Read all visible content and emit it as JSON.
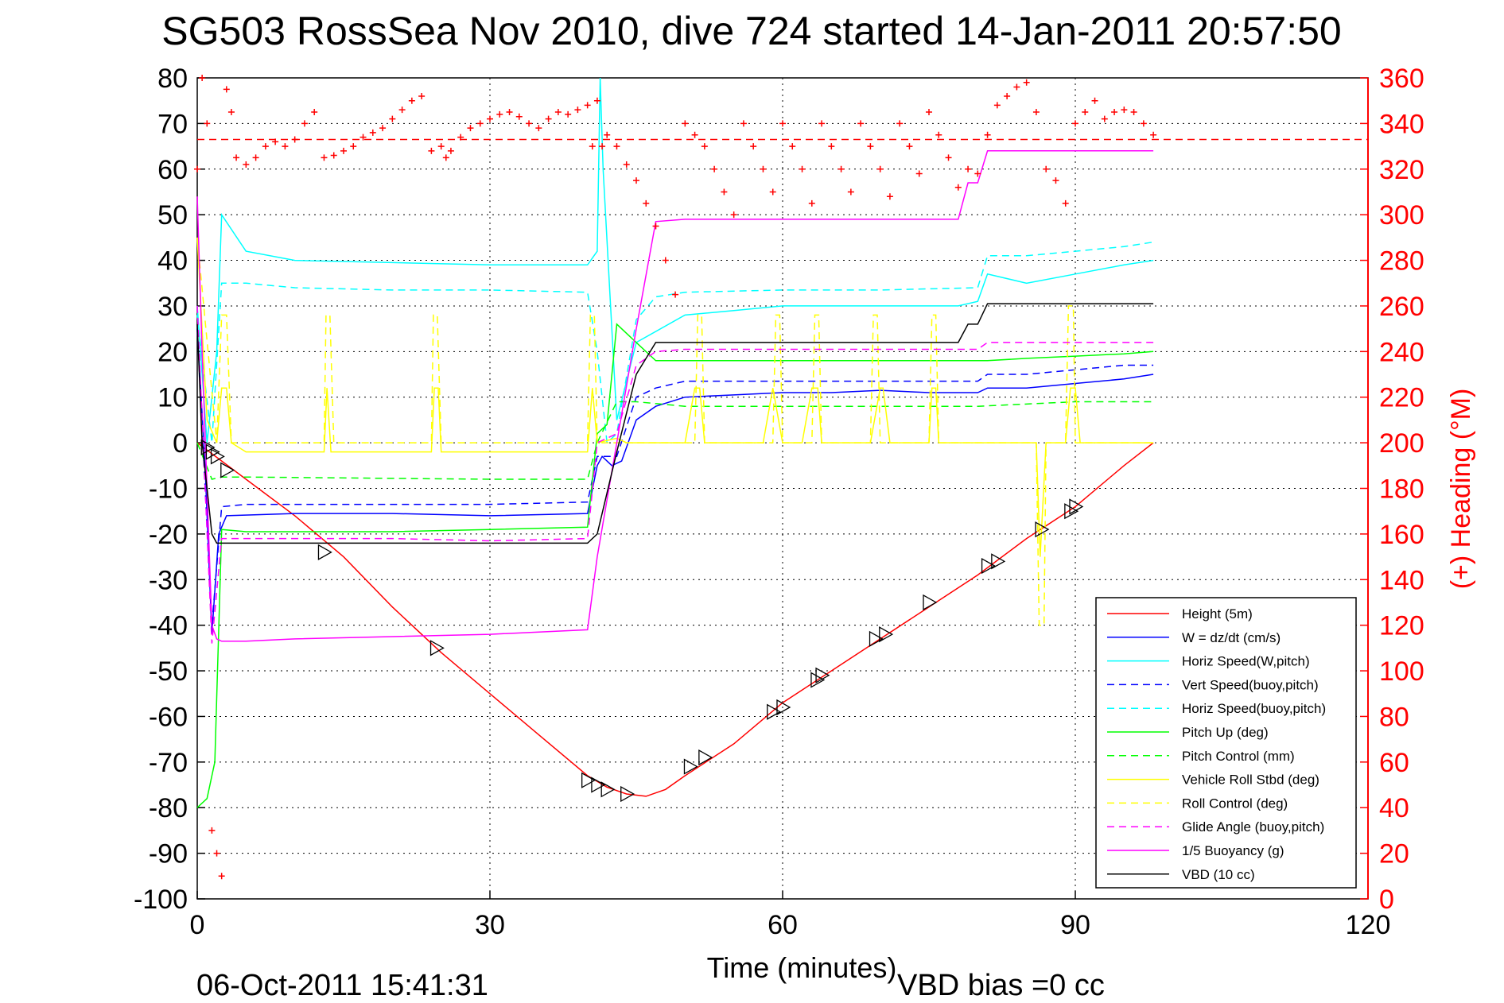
{
  "chart_data": {
    "type": "line",
    "title": "SG503 RossSea Nov 2010, dive 724 started 14-Jan-2011 20:57:50",
    "xlabel": "Time (minutes)",
    "ylabel": "",
    "ylabel_right": "(+) Heading (°M)",
    "xlim": [
      0,
      120
    ],
    "ylim": [
      -100,
      80
    ],
    "ylim_right": [
      0,
      360
    ],
    "x_ticks": [
      "0",
      "30",
      "60",
      "90",
      "120"
    ],
    "y_ticks": [
      "80",
      "70",
      "60",
      "50",
      "40",
      "30",
      "20",
      "10",
      "0",
      "-10",
      "-20",
      "-30",
      "-40",
      "-50",
      "-60",
      "-70",
      "-80",
      "-90",
      "-100"
    ],
    "y_ticks_right": [
      "360",
      "340",
      "320",
      "300",
      "280",
      "260",
      "240",
      "220",
      "200",
      "180",
      "160",
      "140",
      "120",
      "100",
      "80",
      "60",
      "40",
      "20",
      "0"
    ],
    "grid": true,
    "legend_position": "bottom-right",
    "footer_left": "06-Oct-2011 15:41:31",
    "footer_right": "VBD bias =0 cc",
    "colors": {
      "red": "#ff0000",
      "blue": "#0000ff",
      "cyan": "#00ffff",
      "green": "#00ff00",
      "yellow": "#ffff00",
      "magenta": "#ff00ff",
      "black": "#000000"
    },
    "series": [
      {
        "name": "Height (5m)",
        "color": "#ff0000",
        "dash": "solid",
        "x": [
          0,
          5,
          10,
          15,
          20,
          25,
          30,
          35,
          40,
          42,
          44,
          46,
          48,
          50,
          55,
          60,
          65,
          70,
          75,
          80,
          85,
          90,
          95,
          98
        ],
        "y": [
          0,
          -8,
          -16,
          -25,
          -36,
          -46,
          -55,
          -64,
          -73,
          -75.5,
          -77,
          -77.5,
          -76,
          -73,
          -66,
          -57,
          -50,
          -43,
          -36,
          -29,
          -21,
          -14,
          -5,
          0
        ]
      },
      {
        "name": "W = dz/dt (cm/s)",
        "color": "#0000ff",
        "dash": "solid",
        "x": [
          0,
          0.8,
          1.5,
          2.2,
          3,
          10,
          20,
          30,
          40,
          41,
          41.5,
          42.5,
          43.5,
          45,
          47,
          50,
          55,
          60,
          65,
          70,
          75,
          80,
          81,
          85,
          90,
          95,
          98
        ],
        "y": [
          25,
          -5,
          -42,
          -20,
          -16,
          -15.5,
          -15.5,
          -16,
          -15.5,
          -5,
          -3,
          -5,
          -4,
          5,
          8,
          10,
          10.5,
          11,
          11,
          11.5,
          11,
          11,
          12,
          12,
          13,
          14,
          15
        ]
      },
      {
        "name": "Horiz Speed(W,pitch)",
        "color": "#00ffff",
        "dash": "solid",
        "x": [
          0,
          1,
          2,
          2.5,
          5,
          10,
          20,
          30,
          40,
          41,
          41.3,
          41.6,
          43,
          45,
          50,
          55,
          60,
          70,
          78,
          80,
          81,
          85,
          90,
          95,
          98
        ],
        "y": [
          30,
          0,
          20,
          50,
          42,
          40,
          39.5,
          39,
          39,
          42,
          80,
          60,
          5,
          22,
          28,
          29,
          30,
          30,
          30,
          31,
          37,
          35,
          37,
          39,
          40
        ]
      },
      {
        "name": "Vert Speed(buoy,pitch)",
        "color": "#0000ff",
        "dash": "dashed",
        "x": [
          0,
          1.5,
          2.5,
          5,
          20,
          30,
          40,
          41,
          43,
          45,
          47,
          50,
          60,
          70,
          80,
          81,
          85,
          90,
          95,
          98
        ],
        "y": [
          25,
          -40,
          -14,
          -13.5,
          -13.5,
          -13.5,
          -13,
          -3,
          -3,
          10,
          12,
          13.5,
          13.5,
          13.5,
          13.5,
          15,
          15,
          16,
          17,
          17
        ]
      },
      {
        "name": "Horiz Speed(buoy,pitch)",
        "color": "#00ffff",
        "dash": "dashed",
        "x": [
          0,
          1.5,
          2.5,
          5,
          10,
          20,
          30,
          40,
          41,
          42,
          43,
          45,
          47,
          50,
          60,
          70,
          80,
          81,
          85,
          90,
          95,
          98
        ],
        "y": [
          28,
          0,
          35,
          35,
          34,
          33.5,
          33.5,
          33,
          20,
          0,
          2,
          27,
          32,
          33,
          33.5,
          33.5,
          34,
          41,
          41,
          42,
          43,
          44
        ]
      },
      {
        "name": "Pitch Up (deg)",
        "color": "#00ff00",
        "dash": "solid",
        "x": [
          0,
          1,
          1.8,
          2.5,
          5,
          20,
          30,
          40,
          41,
          42,
          43,
          45,
          47,
          50,
          60,
          70,
          80,
          81,
          85,
          90,
          95,
          98
        ],
        "y": [
          -80,
          -78,
          -70,
          -19,
          -19.5,
          -19.5,
          -19,
          -18.5,
          2,
          4,
          26,
          22,
          18,
          18,
          18,
          18,
          18,
          18,
          18.5,
          19,
          19.5,
          20
        ]
      },
      {
        "name": "Pitch Control (mm)",
        "color": "#00ff00",
        "dash": "dashed",
        "x": [
          0,
          1.5,
          2.5,
          5,
          20,
          30,
          40,
          41,
          43,
          45,
          50,
          60,
          70,
          80,
          90,
          98
        ],
        "y": [
          0,
          -8,
          -7.5,
          -7.5,
          -7.8,
          -8,
          -8,
          0,
          9,
          9,
          8,
          8,
          8,
          8,
          9,
          9
        ]
      },
      {
        "name": "Vehicle Roll Stbd (deg)",
        "color": "#ffff00",
        "dash": "solid",
        "x": [
          0,
          1,
          2,
          2.5,
          3,
          3.5,
          5,
          13,
          13.3,
          13.7,
          14,
          24,
          24.3,
          24.7,
          25,
          40,
          40.5,
          41,
          43,
          44,
          50,
          51,
          51.5,
          52,
          58,
          59,
          60,
          62,
          63,
          63.3,
          63.6,
          64,
          69,
          70,
          70.3,
          71,
          75,
          75.3,
          75.7,
          76,
          85,
          86,
          86.4,
          87,
          89,
          89.5,
          90,
          90.5,
          98
        ],
        "y": [
          45,
          5,
          0,
          12,
          12,
          0,
          -2,
          -2,
          12,
          -2,
          -2,
          -2,
          12,
          12,
          -2,
          -2,
          12,
          0,
          1,
          0,
          0,
          12,
          12,
          0,
          0,
          12,
          0,
          0,
          12,
          12,
          12,
          0,
          0,
          12,
          12,
          0,
          0,
          12,
          12,
          0,
          0,
          0,
          -25,
          0,
          0,
          12,
          12,
          0,
          0
        ]
      },
      {
        "name": "Roll Control (deg)",
        "color": "#ffff00",
        "dash": "dashed",
        "x": [
          0,
          2,
          2.5,
          3,
          3.5,
          5,
          13,
          13.2,
          13.6,
          14,
          24,
          24.2,
          24.6,
          25,
          40,
          40.3,
          40.7,
          41,
          44,
          51,
          51.3,
          51.7,
          52,
          59,
          59.3,
          59.7,
          60,
          63,
          63.3,
          63.7,
          64,
          69,
          69.3,
          69.7,
          70,
          75,
          75.3,
          75.7,
          76,
          85,
          86,
          86.3,
          86.8,
          87,
          89,
          89.3,
          89.8,
          90,
          98
        ],
        "y": [
          45,
          0,
          28,
          28,
          0,
          0,
          0,
          28,
          28,
          0,
          0,
          28,
          28,
          0,
          0,
          28,
          28,
          0,
          0,
          0,
          28,
          28,
          0,
          0,
          28,
          28,
          0,
          0,
          28,
          28,
          0,
          0,
          28,
          28,
          0,
          0,
          28,
          28,
          0,
          0,
          0,
          -40,
          -40,
          0,
          0,
          30,
          30,
          0,
          0
        ]
      },
      {
        "name": "Glide Angle (buoy,pitch)",
        "color": "#ff00ff",
        "dash": "dashed",
        "x": [
          0,
          1.5,
          2.5,
          5,
          20,
          30,
          40,
          41,
          43,
          45,
          47,
          50,
          60,
          70,
          80,
          81,
          85,
          90,
          95,
          98
        ],
        "y": [
          30,
          -44,
          -21,
          -21,
          -21,
          -21.5,
          -21,
          0,
          2,
          17,
          20,
          20.5,
          20.5,
          20.5,
          20.5,
          22,
          22,
          22,
          22,
          22
        ]
      },
      {
        "name": "1/5 Buoyancy (g)",
        "color": "#ff00ff",
        "dash": "solid",
        "x": [
          0,
          0.5,
          1,
          1.5,
          2,
          2.5,
          5,
          10,
          20,
          30,
          40,
          41,
          43,
          45,
          47,
          50,
          60,
          70,
          78,
          79,
          80,
          81,
          82,
          90,
          98
        ],
        "y": [
          54,
          20,
          -10,
          -40,
          -43,
          -43.5,
          -43.5,
          -43,
          -42.5,
          -42,
          -41,
          -25,
          0,
          25,
          48.5,
          49,
          49,
          49,
          49,
          57,
          57,
          64,
          64,
          64,
          64
        ]
      },
      {
        "name": "VBD (10 cc)",
        "color": "#000000",
        "dash": "solid",
        "x": [
          0,
          0.5,
          1,
          1.5,
          2,
          2.5,
          5,
          20,
          40,
          41,
          43,
          45,
          47,
          50,
          60,
          70,
          78,
          79,
          80,
          81,
          82,
          90,
          98
        ],
        "y": [
          26,
          0,
          -10,
          -20,
          -22,
          -22,
          -22,
          -22,
          -22,
          -20,
          -2,
          15,
          22,
          22,
          22,
          22,
          22,
          26,
          26,
          30.5,
          30.5,
          30.5,
          30.5
        ]
      }
    ],
    "markers": {
      "type": "triangle",
      "color": "#000000",
      "x": [
        1,
        1.5,
        2,
        3,
        13,
        24.5,
        40,
        41,
        42,
        44,
        50.5,
        52,
        59,
        60,
        63.5,
        64,
        69.5,
        70.5,
        75,
        81,
        82,
        86.5,
        89.5,
        90
      ],
      "y": [
        -1,
        -2,
        -3,
        -6,
        -24,
        -45,
        -74,
        -75,
        -76,
        -77,
        -71,
        -69,
        -59,
        -58,
        -52,
        -51,
        -43,
        -42,
        -35,
        -27,
        -26,
        -19,
        -15,
        -14
      ]
    },
    "heading": {
      "color": "#ff0000",
      "marker": "+",
      "axis": "right",
      "reference_line": 333,
      "x": [
        0,
        0.5,
        1,
        1.5,
        2,
        2.5,
        3,
        3.5,
        4,
        5,
        6,
        7,
        8,
        9,
        10,
        11,
        12,
        13,
        14,
        15,
        16,
        17,
        18,
        19,
        20,
        21,
        22,
        23,
        24,
        25,
        25.5,
        26,
        27,
        28,
        29,
        30,
        31,
        32,
        33,
        34,
        35,
        36,
        37,
        38,
        39,
        40,
        40.5,
        41,
        41.5,
        42,
        43,
        44,
        45,
        46,
        47,
        48,
        49,
        50,
        51,
        52,
        53,
        54,
        55,
        56,
        57,
        58,
        59,
        60,
        61,
        62,
        63,
        64,
        65,
        66,
        67,
        68,
        69,
        70,
        71,
        72,
        73,
        74,
        75,
        76,
        77,
        78,
        79,
        80,
        81,
        82,
        83,
        84,
        85,
        86,
        87,
        88,
        89,
        90,
        91,
        92,
        93,
        94,
        95,
        96,
        97,
        98
      ],
      "y": [
        320,
        360,
        340,
        30,
        20,
        10,
        355,
        345,
        325,
        322,
        325,
        330,
        332,
        330,
        333,
        340,
        345,
        325,
        326,
        328,
        330,
        334,
        336,
        338,
        342,
        346,
        350,
        352,
        328,
        330,
        325,
        328,
        334,
        338,
        340,
        342,
        344,
        345,
        343,
        340,
        338,
        342,
        345,
        344,
        346,
        348,
        330,
        350,
        330,
        335,
        330,
        322,
        315,
        305,
        295,
        280,
        265,
        340,
        335,
        330,
        320,
        310,
        300,
        340,
        330,
        320,
        310,
        340,
        330,
        320,
        305,
        340,
        330,
        320,
        310,
        340,
        330,
        320,
        308,
        340,
        330,
        318,
        345,
        335,
        325,
        312,
        320,
        318,
        335,
        348,
        352,
        356,
        358,
        345,
        320,
        315,
        305,
        340,
        345,
        350,
        342,
        345,
        346,
        345,
        340,
        335
      ]
    }
  }
}
